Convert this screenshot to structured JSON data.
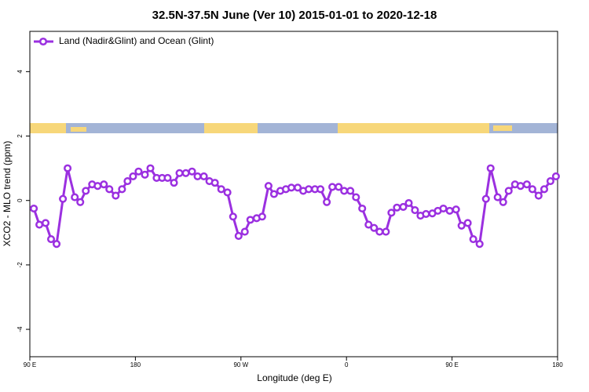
{
  "chart_data": {
    "type": "line",
    "title": "32.5N-37.5N June (Ver 10)   2015-01-01 to 2020-12-18",
    "x_label": "Longitude (deg E)",
    "y_label": "XCO2 - MLO trend (ppm)",
    "x": [
      93.4,
      98.1,
      103.4,
      108.1,
      112.8,
      118.2,
      122.2,
      128.3,
      133.0,
      137.7,
      143.1,
      147.8,
      153.1,
      157.8,
      163.2,
      168.6,
      173.3,
      178.0,
      182.7,
      188.1,
      192.8,
      198.1,
      202.8,
      207.5,
      212.9,
      217.6,
      223.0,
      228.3,
      233.0,
      238.4,
      243.1,
      247.8,
      253.2,
      258.5,
      263.3,
      268.0,
      273.3,
      278.0,
      283.4,
      288.1,
      293.5,
      298.2,
      303.6,
      308.3,
      313.0,
      318.4,
      323.1,
      327.8,
      333.1,
      337.8,
      343.2,
      347.9,
      353.3,
      358.0,
      363.3,
      368.1,
      373.4,
      378.8,
      383.5,
      388.2,
      393.6,
      398.3,
      403.0,
      408.4,
      413.1,
      418.4,
      423.1,
      427.8,
      433.2,
      437.9,
      442.6,
      448.0,
      453.4,
      458.1,
      463.4,
      468.1,
      473.5,
      478.9,
      482.9,
      488.9,
      493.6,
      498.3,
      503.7,
      508.4,
      513.8,
      518.5,
      523.8,
      528.6,
      533.9,
      538.6
    ],
    "series": [
      {
        "name": "Land (Nadir&Glint) and Ocean (Glint)",
        "color": "#9b30e0",
        "values": [
          -0.25,
          -0.75,
          -0.7,
          -1.2,
          -1.35,
          0.05,
          1.0,
          0.1,
          -0.05,
          0.3,
          0.5,
          0.45,
          0.5,
          0.35,
          0.15,
          0.35,
          0.6,
          0.75,
          0.9,
          0.8,
          1.0,
          0.7,
          0.7,
          0.7,
          0.55,
          0.85,
          0.85,
          0.9,
          0.75,
          0.75,
          0.6,
          0.55,
          0.35,
          0.25,
          -0.5,
          -1.1,
          -0.97,
          -0.6,
          -0.55,
          -0.5,
          0.45,
          0.2,
          0.3,
          0.35,
          0.4,
          0.4,
          0.3,
          0.35,
          0.35,
          0.35,
          -0.05,
          0.42,
          0.42,
          0.3,
          0.3,
          0.1,
          -0.25,
          -0.75,
          -0.85,
          -0.97,
          -0.97,
          -0.38,
          -0.22,
          -0.2,
          -0.08,
          -0.3,
          -0.47,
          -0.42,
          -0.4,
          -0.32,
          -0.25,
          -0.32,
          -0.28,
          -0.78,
          -0.7,
          -1.2,
          -1.35,
          0.05,
          1.0,
          0.1,
          -0.05,
          0.3,
          0.5,
          0.45,
          0.5,
          0.35,
          0.15,
          0.35,
          0.6,
          0.75
        ]
      }
    ],
    "xlim": [
      90,
      540
    ],
    "xticks": [
      {
        "value": 90,
        "label": "90 E"
      },
      180,
      {
        "value": 270,
        "label": "90 W"
      },
      {
        "value": 360,
        "label": "0"
      },
      {
        "value": 450,
        "label": "90 E"
      },
      {
        "value": 540,
        "label": "180"
      }
    ],
    "ylim": [
      -4.85,
      5.25
    ],
    "yticks": [
      4,
      2,
      0,
      -2,
      -4
    ],
    "legend": "top-left"
  }
}
